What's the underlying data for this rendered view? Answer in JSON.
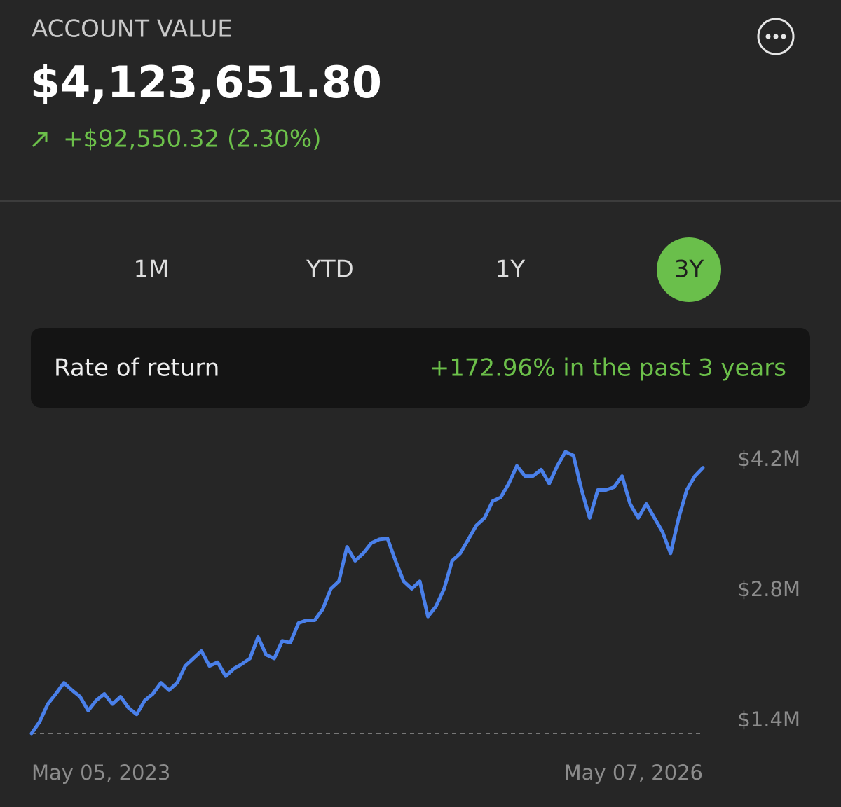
{
  "header": {
    "title": "ACCOUNT VALUE",
    "value": "$4,123,651.80",
    "change": "+$92,550.32 (2.30%)"
  },
  "tabs": [
    "1M",
    "YTD",
    "1Y",
    "3Y"
  ],
  "selected_tab_index": 3,
  "rate_of_return": {
    "label": "Rate of return",
    "value": "+172.96% in the past 3 years"
  },
  "chart_data": {
    "type": "line",
    "color": "#4a80ea",
    "categories": [
      "May 05, 2023",
      null,
      null,
      null,
      null,
      null,
      null,
      null,
      null,
      null,
      null,
      null,
      null,
      null,
      null,
      null,
      null,
      null,
      null,
      null,
      null,
      null,
      null,
      null,
      null,
      null,
      null,
      null,
      null,
      null,
      null,
      null,
      null,
      null,
      null,
      null,
      null,
      null,
      null,
      null,
      null,
      null,
      null,
      null,
      null,
      null,
      null,
      null,
      null,
      null,
      null,
      null,
      null,
      null,
      null,
      null,
      null,
      null,
      null,
      null,
      null,
      null,
      null,
      null,
      null,
      null,
      null,
      null,
      null,
      null,
      null,
      null,
      null,
      null,
      null,
      null,
      null,
      null,
      null,
      null,
      null,
      null,
      null,
      "May 07, 2026"
    ],
    "values": [
      1265000,
      1390000,
      1580000,
      1690000,
      1810000,
      1730000,
      1660000,
      1510000,
      1620000,
      1690000,
      1580000,
      1660000,
      1540000,
      1470000,
      1620000,
      1690000,
      1810000,
      1730000,
      1810000,
      1990000,
      2070000,
      2150000,
      1990000,
      2030000,
      1880000,
      1960000,
      2010000,
      2070000,
      2300000,
      2110000,
      2070000,
      2260000,
      2240000,
      2450000,
      2480000,
      2480000,
      2600000,
      2820000,
      2900000,
      3270000,
      3120000,
      3200000,
      3310000,
      3350000,
      3360000,
      3120000,
      2900000,
      2820000,
      2900000,
      2520000,
      2630000,
      2820000,
      3120000,
      3200000,
      3350000,
      3500000,
      3580000,
      3760000,
      3800000,
      3950000,
      4140000,
      4030000,
      4030000,
      4100000,
      3950000,
      4140000,
      4290000,
      4250000,
      3880000,
      3580000,
      3880000,
      3880000,
      3910000,
      4030000,
      3730000,
      3580000,
      3730000,
      3580000,
      3430000,
      3200000,
      3580000,
      3880000,
      4030000,
      4120000
    ],
    "ylim": [
      1265000,
      4400000
    ],
    "yticks": [
      {
        "value": 1400000,
        "label": "$1.4M"
      },
      {
        "value": 2800000,
        "label": "$2.8M"
      },
      {
        "value": 4200000,
        "label": "$4.2M"
      }
    ]
  }
}
